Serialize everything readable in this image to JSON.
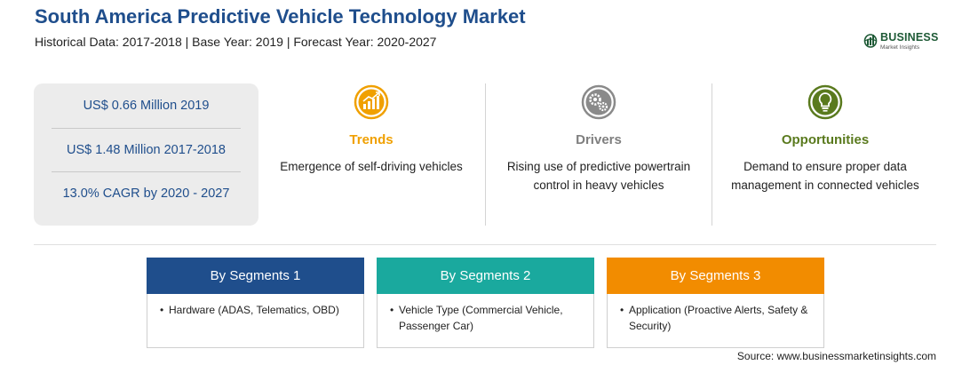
{
  "header": {
    "title": "South America Predictive Vehicle Technology Market",
    "subtitle": "Historical Data: 2017-2018 | Base Year: 2019 | Forecast Year: 2020-2027"
  },
  "logo": {
    "main": "BUSINESS",
    "sub": "Market Insights"
  },
  "stats": [
    "US$ 0.66 Million 2019",
    "US$ 1.48 Million 2017-2018",
    "13.0% CAGR by 2020 - 2027"
  ],
  "columns": {
    "trends": {
      "title": "Trends",
      "text": "Emergence of self-driving vehicles",
      "color": "#f0a000",
      "icon": "trend-chart-icon"
    },
    "drivers": {
      "title": "Drivers",
      "text": "Rising use of predictive powertrain control in heavy vehicles",
      "color": "#7f7f7f",
      "icon": "gears-icon"
    },
    "opportunities": {
      "title": "Opportunities",
      "text": "Demand to ensure proper data management in connected vehicles",
      "color": "#5a7a1e",
      "icon": "lightbulb-icon"
    }
  },
  "segments": [
    {
      "title": "By Segments 1",
      "color": "#1f4e8c",
      "item": "Hardware (ADAS, Telematics, OBD)"
    },
    {
      "title": "By Segments 2",
      "color": "#1aa99e",
      "item": "Vehicle Type (Commercial Vehicle, Passenger Car)"
    },
    {
      "title": "By Segments 3",
      "color": "#f28c00",
      "item": "Application (Proactive Alerts, Safety & Security)"
    }
  ],
  "bullet": "•",
  "source": "Source: www.businessmarketinsights.com"
}
